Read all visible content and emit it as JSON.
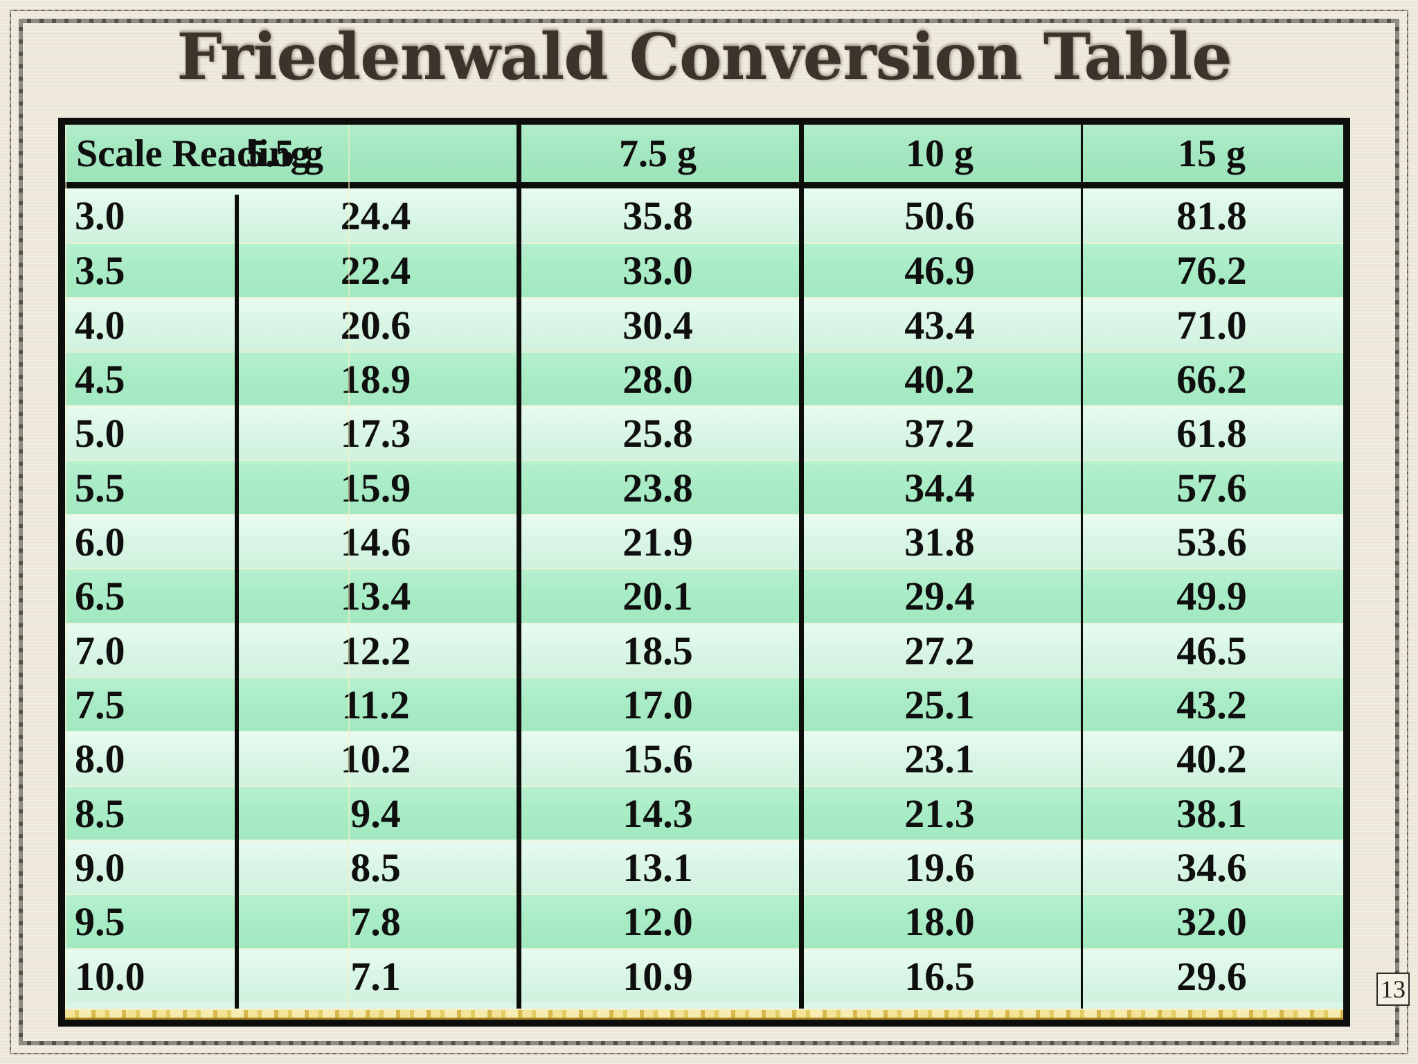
{
  "slide": {
    "title": "Friedenwald Conversion Table",
    "page_number": "13"
  },
  "table": {
    "columns": [
      "Scale Reading",
      "5.5 g",
      "7.5 g",
      "10 g",
      "15 g"
    ],
    "rows": [
      [
        "3.0",
        "24.4",
        "35.8",
        "50.6",
        "81.8"
      ],
      [
        "3.5",
        "22.4",
        "33.0",
        "46.9",
        "76.2"
      ],
      [
        "4.0",
        "20.6",
        "30.4",
        "43.4",
        "71.0"
      ],
      [
        "4.5",
        "18.9",
        "28.0",
        "40.2",
        "66.2"
      ],
      [
        "5.0",
        "17.3",
        "25.8",
        "37.2",
        "61.8"
      ],
      [
        "5.5",
        "15.9",
        "23.8",
        "34.4",
        "57.6"
      ],
      [
        "6.0",
        "14.6",
        "21.9",
        "31.8",
        "53.6"
      ],
      [
        "6.5",
        "13.4",
        "20.1",
        "29.4",
        "49.9"
      ],
      [
        "7.0",
        "12.2",
        "18.5",
        "27.2",
        "46.5"
      ],
      [
        "7.5",
        "11.2",
        "17.0",
        "25.1",
        "43.2"
      ],
      [
        "8.0",
        "10.2",
        "15.6",
        "23.1",
        "40.2"
      ],
      [
        "8.5",
        "9.4",
        "14.3",
        "21.3",
        "38.1"
      ],
      [
        "9.0",
        "8.5",
        "13.1",
        "19.6",
        "34.6"
      ],
      [
        "9.5",
        "7.8",
        "12.0",
        "18.0",
        "32.0"
      ],
      [
        "10.0",
        "7.1",
        "10.9",
        "16.5",
        "29.6"
      ]
    ]
  },
  "chart_data": {
    "type": "table",
    "title": "Friedenwald Conversion Table",
    "columns": [
      "Scale Reading",
      "5.5 g",
      "7.5 g",
      "10 g",
      "15 g"
    ],
    "rows": [
      [
        "3.0",
        24.4,
        35.8,
        50.6,
        81.8
      ],
      [
        "3.5",
        22.4,
        33.0,
        46.9,
        76.2
      ],
      [
        "4.0",
        20.6,
        30.4,
        43.4,
        71.0
      ],
      [
        "4.5",
        18.9,
        28.0,
        40.2,
        66.2
      ],
      [
        "5.0",
        17.3,
        25.8,
        37.2,
        61.8
      ],
      [
        "5.5",
        15.9,
        23.8,
        34.4,
        57.6
      ],
      [
        "6.0",
        14.6,
        21.9,
        31.8,
        53.6
      ],
      [
        "6.5",
        13.4,
        20.1,
        29.4,
        49.9
      ],
      [
        "7.0",
        12.2,
        18.5,
        27.2,
        46.5
      ],
      [
        "7.5",
        11.2,
        17.0,
        25.1,
        43.2
      ],
      [
        "8.0",
        10.2,
        15.6,
        23.1,
        40.2
      ],
      [
        "8.5",
        9.4,
        14.3,
        21.3,
        38.1
      ],
      [
        "9.0",
        8.5,
        13.1,
        19.6,
        34.6
      ],
      [
        "9.5",
        7.8,
        12.0,
        18.0,
        32.0
      ],
      [
        "10.0",
        7.1,
        10.9,
        16.5,
        29.6
      ]
    ]
  },
  "colors": {
    "background_cream": "#eee9db",
    "title_brown": "#3e332a",
    "table_border": "#0d0d0b",
    "header_green": "#a5e8c1",
    "row_light": "#daf6e6",
    "row_dark": "#a9ecc6",
    "grid_cream": "#f0ecc8",
    "gold_light": "#f2e396",
    "gold_dark": "#a8871f",
    "frame_dark": "#4b453e"
  }
}
